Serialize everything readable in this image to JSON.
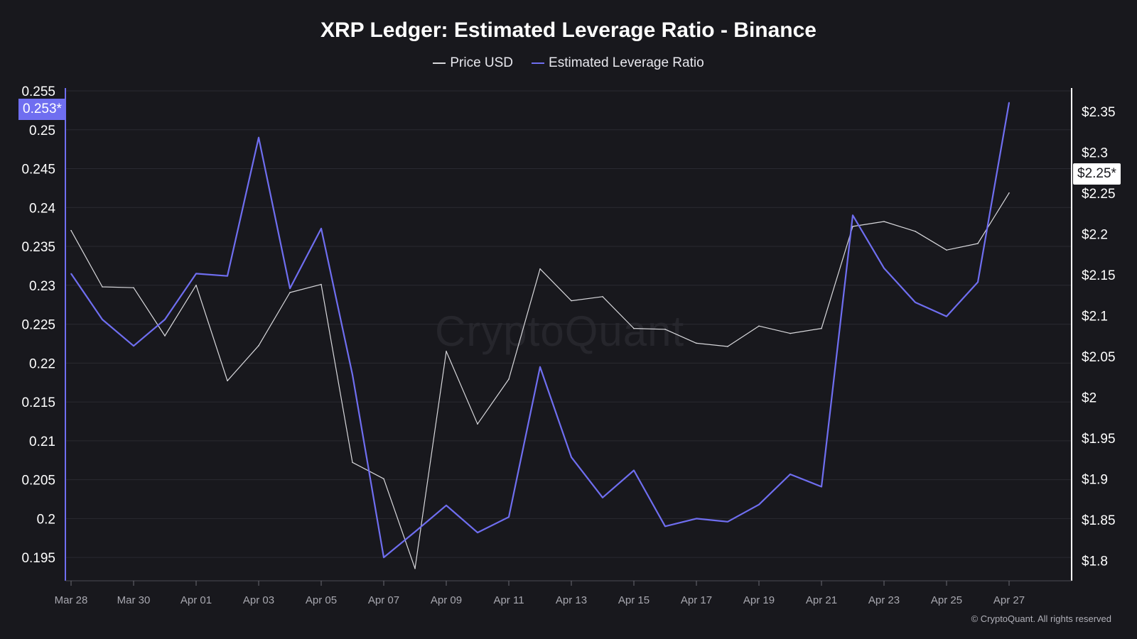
{
  "chart_data": {
    "type": "line",
    "title": "XRP Ledger: Estimated Leverage Ratio - Binance",
    "legend_position": "top-center",
    "grid": true,
    "x": [
      "Mar 28",
      "Mar 29",
      "Mar 30",
      "Mar 31",
      "Apr 01",
      "Apr 02",
      "Apr 03",
      "Apr 04",
      "Apr 05",
      "Apr 06",
      "Apr 07",
      "Apr 08",
      "Apr 09",
      "Apr 10",
      "Apr 11",
      "Apr 12",
      "Apr 13",
      "Apr 14",
      "Apr 15",
      "Apr 16",
      "Apr 17",
      "Apr 18",
      "Apr 19",
      "Apr 20",
      "Apr 21",
      "Apr 22",
      "Apr 23",
      "Apr 24",
      "Apr 25",
      "Apr 26",
      "Apr 27"
    ],
    "x_tick_labels": [
      "Mar 28",
      "Mar 30",
      "Apr 01",
      "Apr 03",
      "Apr 05",
      "Apr 07",
      "Apr 09",
      "Apr 11",
      "Apr 13",
      "Apr 15",
      "Apr 17",
      "Apr 19",
      "Apr 21",
      "Apr 23",
      "Apr 25",
      "Apr 27"
    ],
    "left_axis": {
      "ylim": [
        0.192,
        0.255
      ],
      "ticks": [
        "0.195",
        "0.2",
        "0.205",
        "0.21",
        "0.215",
        "0.22",
        "0.225",
        "0.23",
        "0.235",
        "0.24",
        "0.245",
        "0.25",
        "0.255"
      ],
      "badge": "0.253*"
    },
    "right_axis": {
      "ylim": [
        1.775,
        2.375
      ],
      "ticks": [
        "$1.8",
        "$1.85",
        "$1.9",
        "$1.95",
        "$2",
        "$2.05",
        "$2.1",
        "$2.15",
        "$2.2",
        "$2.25",
        "$2.3",
        "$2.35"
      ],
      "badge": "$2.25*"
    },
    "series": [
      {
        "name": "Price USD",
        "axis": "right",
        "color": "#d8d8dc",
        "values": [
          2.204,
          2.135,
          2.134,
          2.075,
          2.137,
          2.02,
          2.063,
          2.128,
          2.138,
          1.92,
          1.9,
          1.79,
          2.056,
          1.967,
          2.022,
          2.157,
          2.118,
          2.123,
          2.084,
          2.083,
          2.066,
          2.062,
          2.087,
          2.078,
          2.084,
          2.209,
          2.215,
          2.203,
          2.18,
          2.188,
          2.25
        ]
      },
      {
        "name": "Estimated Leverage Ratio",
        "axis": "left",
        "color": "#6f6ef0",
        "values": [
          0.2315,
          0.2256,
          0.2222,
          0.2256,
          0.2315,
          0.2312,
          0.249,
          0.2296,
          0.2373,
          0.2185,
          0.195,
          0.1983,
          0.2017,
          0.1982,
          0.2002,
          0.2195,
          0.2079,
          0.2027,
          0.2062,
          0.199,
          0.2,
          0.1996,
          0.2018,
          0.2057,
          0.2041,
          0.239,
          0.2322,
          0.2278,
          0.226,
          0.2304,
          0.2535
        ]
      }
    ]
  },
  "watermark": "CryptoQuant",
  "copyright": "© CryptoQuant. All rights reserved"
}
